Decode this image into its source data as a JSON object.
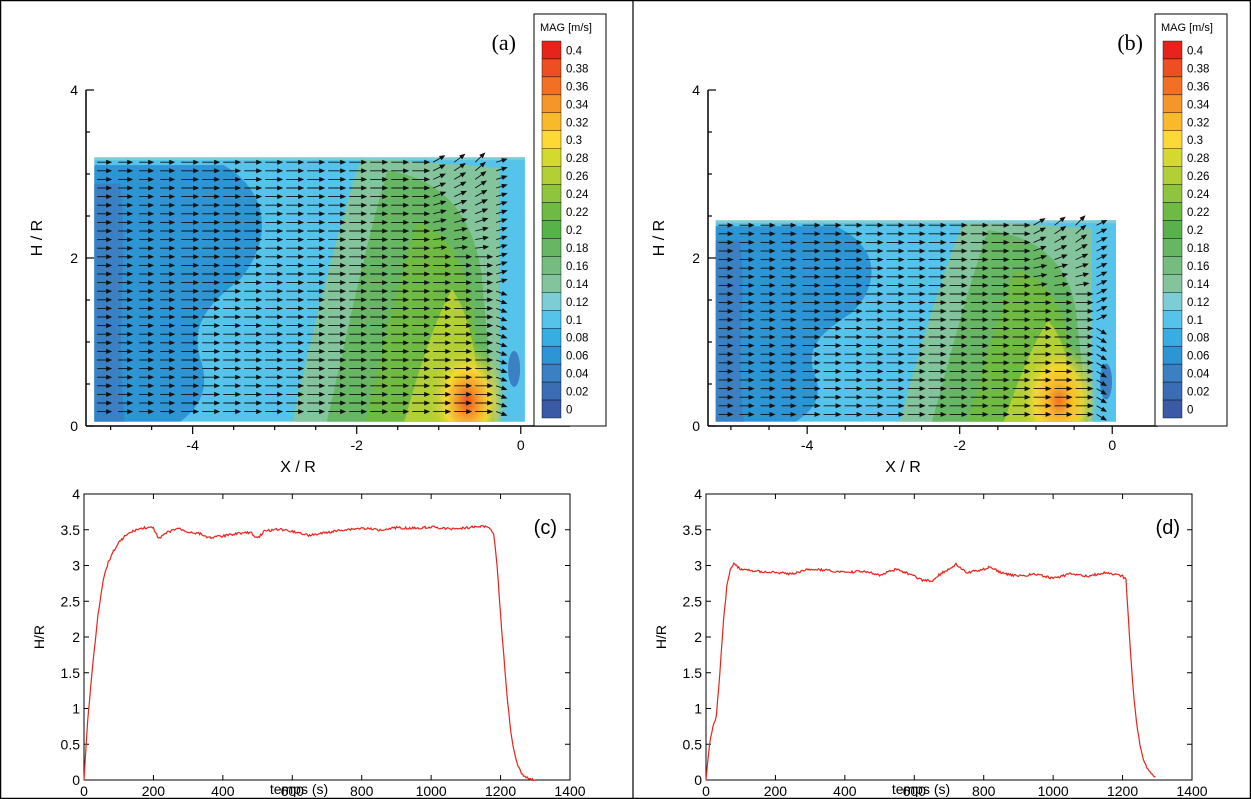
{
  "chart_data": [
    {
      "panel": "(a)",
      "type": "heatmap",
      "xlabel": "X / R",
      "ylabel": "H / R",
      "xlim": [
        -5.3,
        0.6
      ],
      "ylim": [
        0,
        4
      ],
      "xticks": [
        -4,
        -2,
        0
      ],
      "yticks": [
        0,
        2,
        4
      ],
      "field_extent": {
        "x": [
          -5.2,
          0.05
        ],
        "y": [
          0.05,
          3.2
        ]
      },
      "peak": {
        "x": -0.65,
        "y": 0.3,
        "value": 0.36
      },
      "colorbar": {
        "title": "MAG [m/s]",
        "levels": [
          "0.4",
          "0.38",
          "0.36",
          "0.34",
          "0.32",
          "0.3",
          "0.28",
          "0.26",
          "0.24",
          "0.22",
          "0.2",
          "0.18",
          "0.16",
          "0.14",
          "0.12",
          "0.1",
          "0.08",
          "0.06",
          "0.04",
          "0.02",
          "0"
        ],
        "colors": [
          "#e8231c",
          "#ee4f22",
          "#f27026",
          "#f5962a",
          "#f8b92b",
          "#fcd934",
          "#d3d92d",
          "#b2cf36",
          "#8fc43f",
          "#6fba43",
          "#58b24a",
          "#66b664",
          "#74bd7f",
          "#83c49c",
          "#7ccdd6",
          "#55c3ea",
          "#38ade3",
          "#2d95d3",
          "#3a80c3",
          "#3a6db3",
          "#3a5aa6"
        ]
      }
    },
    {
      "panel": "(b)",
      "type": "heatmap",
      "xlabel": "X / R",
      "ylabel": "H / R",
      "xlim": [
        -5.3,
        0.6
      ],
      "ylim": [
        0,
        4
      ],
      "xticks": [
        -4,
        -2,
        0
      ],
      "yticks": [
        0,
        2,
        4
      ],
      "field_extent": {
        "x": [
          -5.2,
          0.05
        ],
        "y": [
          0.05,
          2.45
        ]
      },
      "peak": {
        "x": -0.7,
        "y": 0.3,
        "value": 0.34
      },
      "colorbar": {
        "title": "MAG [m/s]",
        "levels": [
          "0.4",
          "0.38",
          "0.36",
          "0.34",
          "0.32",
          "0.3",
          "0.28",
          "0.26",
          "0.24",
          "0.22",
          "0.2",
          "0.18",
          "0.16",
          "0.14",
          "0.12",
          "0.1",
          "0.08",
          "0.06",
          "0.04",
          "0.02",
          "0"
        ],
        "colors": [
          "#e8231c",
          "#ee4f22",
          "#f27026",
          "#f5962a",
          "#f8b92b",
          "#fcd934",
          "#d3d92d",
          "#b2cf36",
          "#8fc43f",
          "#6fba43",
          "#58b24a",
          "#66b664",
          "#74bd7f",
          "#83c49c",
          "#7ccdd6",
          "#55c3ea",
          "#38ade3",
          "#2d95d3",
          "#3a80c3",
          "#3a6db3",
          "#3a5aa6"
        ]
      }
    },
    {
      "panel": "(c)",
      "type": "line",
      "xlabel": "temps (s)",
      "ylabel": "H/R",
      "xlim": [
        0,
        1400
      ],
      "ylim": [
        0,
        4
      ],
      "xticks": [
        0,
        200,
        400,
        600,
        800,
        1000,
        1200,
        1400
      ],
      "yticks": [
        "0",
        "0.5",
        "1",
        "1.5",
        "2",
        "2.5",
        "3",
        "3.5",
        "4"
      ],
      "series_color": "#e8231c",
      "x": [
        0,
        10,
        25,
        40,
        55,
        70,
        85,
        100,
        120,
        150,
        180,
        200,
        215,
        240,
        270,
        300,
        330,
        360,
        400,
        440,
        480,
        500,
        520,
        560,
        600,
        650,
        700,
        750,
        800,
        850,
        900,
        950,
        1000,
        1050,
        1100,
        1150,
        1170,
        1180,
        1190,
        1200,
        1210,
        1220,
        1230,
        1240,
        1250,
        1260,
        1270,
        1280,
        1300
      ],
      "y": [
        0,
        0.8,
        1.6,
        2.3,
        2.8,
        3.05,
        3.2,
        3.32,
        3.42,
        3.5,
        3.53,
        3.52,
        3.38,
        3.46,
        3.52,
        3.47,
        3.45,
        3.39,
        3.41,
        3.45,
        3.46,
        3.38,
        3.48,
        3.51,
        3.48,
        3.42,
        3.46,
        3.5,
        3.52,
        3.5,
        3.53,
        3.52,
        3.54,
        3.51,
        3.53,
        3.55,
        3.52,
        3.45,
        3.0,
        2.3,
        1.7,
        1.1,
        0.65,
        0.38,
        0.2,
        0.1,
        0.05,
        0.02,
        0
      ]
    },
    {
      "panel": "(d)",
      "type": "line",
      "xlabel": "temps (s)",
      "ylabel": "H/R",
      "xlim": [
        0,
        1400
      ],
      "ylim": [
        0,
        4
      ],
      "xticks": [
        0,
        200,
        400,
        600,
        800,
        1000,
        1200,
        1400
      ],
      "yticks": [
        "0",
        "0.5",
        "1",
        "1.5",
        "2",
        "2.5",
        "3",
        "3.5",
        "4"
      ],
      "series_color": "#e8231c",
      "x": [
        0,
        10,
        20,
        30,
        40,
        50,
        60,
        70,
        80,
        100,
        150,
        200,
        250,
        300,
        350,
        400,
        450,
        500,
        550,
        600,
        620,
        650,
        680,
        700,
        720,
        750,
        800,
        820,
        850,
        900,
        950,
        1000,
        1050,
        1100,
        1150,
        1200,
        1210,
        1220,
        1230,
        1240,
        1250,
        1260,
        1270,
        1280,
        1295
      ],
      "y": [
        0,
        0.5,
        0.75,
        0.9,
        1.5,
        2.2,
        2.7,
        2.95,
        3.02,
        2.95,
        2.92,
        2.9,
        2.88,
        2.95,
        2.93,
        2.9,
        2.92,
        2.87,
        2.95,
        2.85,
        2.8,
        2.78,
        2.9,
        2.95,
        3.02,
        2.9,
        2.95,
        2.98,
        2.9,
        2.85,
        2.88,
        2.82,
        2.88,
        2.85,
        2.9,
        2.85,
        2.8,
        2.0,
        1.3,
        0.8,
        0.5,
        0.3,
        0.18,
        0.1,
        0.05
      ]
    }
  ]
}
